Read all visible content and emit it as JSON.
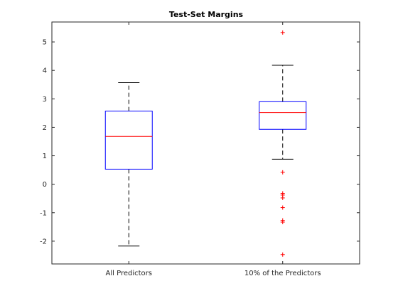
{
  "chart_data": {
    "type": "boxplot",
    "title": "Test-Set Margins",
    "xlabel": "",
    "ylabel": "",
    "ylim": [
      -2.8,
      5.7
    ],
    "yticks": [
      -2,
      -1,
      0,
      1,
      2,
      3,
      4,
      5
    ],
    "categories": [
      "All Predictors",
      "10% of the Predictors"
    ],
    "boxes": [
      {
        "category": "All Predictors",
        "whisker_low": -2.17,
        "q1": 0.53,
        "median": 1.68,
        "q3": 2.57,
        "whisker_high": 3.57,
        "outliers": []
      },
      {
        "category": "10% of the Predictors",
        "whisker_low": 0.88,
        "q1": 1.93,
        "median": 2.52,
        "q3": 2.9,
        "whisker_high": 4.18,
        "outliers": [
          5.33,
          0.42,
          -0.32,
          -0.38,
          -0.48,
          -0.82,
          -1.27,
          -1.33,
          -2.47
        ]
      }
    ],
    "colors": {
      "box": "#0000ff",
      "median": "#ff0000",
      "whisker": "#000000",
      "outlier": "#ff0000",
      "axes": "#262626"
    },
    "grid": false,
    "legend": "none"
  }
}
